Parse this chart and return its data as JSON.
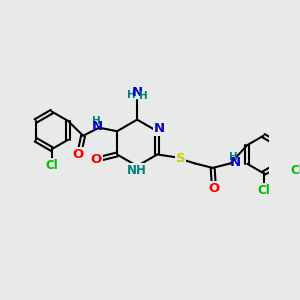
{
  "bg_color": "#e8eaea",
  "bond_color": "#000000",
  "bond_width": 1.5,
  "atom_colors": {
    "C": "#000000",
    "N": "#0000cc",
    "O": "#ff0000",
    "S": "#cccc00",
    "Cl": "#00bb00",
    "H": "#008080"
  },
  "font_size": 8.5,
  "fig_size": [
    3.0,
    3.0
  ],
  "dpi": 100
}
